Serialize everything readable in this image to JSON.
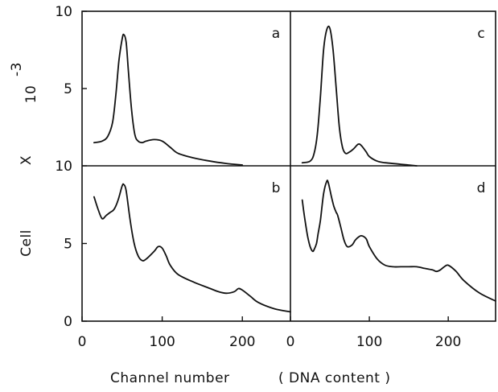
{
  "chart_data": {
    "type": "line",
    "ylabel": "Cell",
    "ylabel_scale": "X",
    "ylabel_exponent": "10",
    "ylabel_exponent_power": "-3",
    "xlabel": "Channel number",
    "xlabel_parenthetical": "( DNA content )",
    "xlim": [
      0,
      260
    ],
    "ylim": [
      0,
      10
    ],
    "x_ticks": [
      {
        "value": 0,
        "label": "0"
      },
      {
        "value": 100,
        "label": "100"
      },
      {
        "value": 200,
        "label": "200"
      }
    ],
    "y_ticks_top": [
      {
        "value": 5,
        "label": "5"
      },
      {
        "value": 10,
        "label": "10"
      }
    ],
    "y_ticks_bottom": [
      {
        "value": 0,
        "label": "0"
      },
      {
        "value": 5,
        "label": "5"
      },
      {
        "value": 10,
        "label": "10"
      }
    ],
    "panels": [
      {
        "id": "a",
        "label": "a",
        "row": "top",
        "col": "left",
        "x": [
          15,
          25,
          32,
          38,
          42,
          46,
          50,
          52,
          55,
          58,
          62,
          66,
          70,
          75,
          80,
          90,
          100,
          110,
          120,
          140,
          160,
          180,
          200
        ],
        "y": [
          1.5,
          1.6,
          1.9,
          2.8,
          4.5,
          6.8,
          8.2,
          8.5,
          8.0,
          6.0,
          3.5,
          2.0,
          1.6,
          1.5,
          1.6,
          1.7,
          1.6,
          1.2,
          0.8,
          0.5,
          0.3,
          0.15,
          0.05
        ]
      },
      {
        "id": "c",
        "label": "c",
        "row": "top",
        "col": "right",
        "x": [
          15,
          25,
          30,
          34,
          38,
          42,
          46,
          50,
          54,
          58,
          62,
          66,
          70,
          75,
          80,
          86,
          90,
          96,
          100,
          110,
          120,
          140,
          160
        ],
        "y": [
          0.2,
          0.3,
          0.8,
          2.0,
          4.5,
          7.5,
          8.8,
          8.9,
          7.5,
          5.0,
          2.5,
          1.2,
          0.8,
          0.9,
          1.1,
          1.4,
          1.3,
          0.9,
          0.6,
          0.3,
          0.2,
          0.1,
          0.0
        ]
      },
      {
        "id": "b",
        "label": "b",
        "row": "bottom",
        "col": "left",
        "x": [
          15,
          20,
          25,
          30,
          35,
          40,
          45,
          50,
          52,
          55,
          60,
          65,
          70,
          75,
          80,
          90,
          95,
          100,
          105,
          110,
          120,
          140,
          160,
          170,
          180,
          190,
          195,
          200,
          210,
          220,
          240,
          260
        ],
        "y": [
          8.0,
          7.2,
          6.6,
          6.8,
          7.0,
          7.2,
          7.8,
          8.7,
          8.8,
          8.4,
          6.5,
          5.0,
          4.2,
          3.9,
          4.0,
          4.5,
          4.8,
          4.7,
          4.2,
          3.6,
          3.0,
          2.5,
          2.1,
          1.9,
          1.8,
          1.9,
          2.1,
          2.0,
          1.6,
          1.2,
          0.8,
          0.6
        ]
      },
      {
        "id": "d",
        "label": "d",
        "row": "bottom",
        "col": "right",
        "x": [
          15,
          17,
          20,
          22,
          25,
          28,
          30,
          33,
          35,
          38,
          42,
          46,
          48,
          52,
          55,
          58,
          60,
          64,
          68,
          72,
          78,
          82,
          86,
          90,
          96,
          100,
          110,
          120,
          130,
          140,
          150,
          160,
          170,
          180,
          185,
          190,
          195,
          200,
          210,
          220,
          240,
          260
        ],
        "y": [
          7.8,
          7.0,
          6.0,
          5.4,
          4.8,
          4.5,
          4.6,
          5.0,
          5.6,
          6.5,
          8.2,
          9.0,
          8.9,
          8.0,
          7.4,
          7.0,
          6.8,
          6.0,
          5.2,
          4.8,
          4.9,
          5.2,
          5.4,
          5.5,
          5.3,
          4.8,
          4.0,
          3.6,
          3.5,
          3.5,
          3.5,
          3.5,
          3.4,
          3.3,
          3.2,
          3.3,
          3.5,
          3.6,
          3.2,
          2.6,
          1.8,
          1.3
        ]
      }
    ]
  }
}
